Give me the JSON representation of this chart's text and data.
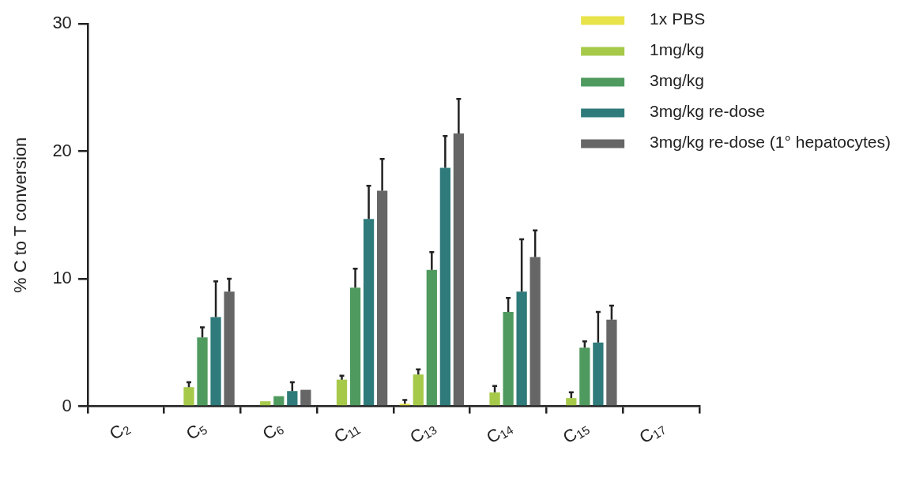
{
  "chart_data": {
    "type": "bar",
    "ylabel": "% C to T conversion",
    "categories": [
      "C$_{2}$",
      "C$_{5}$",
      "C$_{6}$",
      "C$_{11}$",
      "C$_{13}$",
      "C$_{14}$",
      "C$_{15}$",
      "C$_{17}$"
    ],
    "ylim": [
      0,
      30
    ],
    "yticks": [
      0,
      10,
      20,
      30
    ],
    "grid": false,
    "legend": "top right",
    "series": [
      {
        "name": "1x PBS",
        "color": "#e8e34a",
        "values": [
          0,
          0,
          0,
          0,
          0.2,
          0,
          0,
          0
        ],
        "errors": [
          null,
          null,
          null,
          null,
          [
            0.2,
            0.5
          ],
          null,
          null,
          null
        ]
      },
      {
        "name": "1mg/kg",
        "color": "#a6c94a",
        "values": [
          0,
          1.5,
          0.4,
          2.1,
          2.5,
          1.1,
          0.65,
          0
        ],
        "errors": [
          null,
          [
            1.5,
            1.9
          ],
          null,
          [
            2.1,
            2.4
          ],
          [
            2.5,
            2.9
          ],
          [
            1.1,
            1.6
          ],
          [
            0.65,
            1.1
          ],
          null
        ]
      },
      {
        "name": "3mg/kg",
        "color": "#4f9a5e",
        "values": [
          0,
          5.4,
          0.8,
          9.3,
          10.7,
          7.4,
          4.6,
          0
        ],
        "errors": [
          null,
          [
            5.4,
            6.2
          ],
          null,
          [
            9.3,
            10.8
          ],
          [
            10.7,
            12.1
          ],
          [
            7.4,
            8.5
          ],
          [
            4.6,
            5.1
          ],
          null
        ]
      },
      {
        "name": "3mg/kg re-dose",
        "color": "#2f7a7a",
        "values": [
          0,
          7.0,
          1.2,
          14.7,
          18.7,
          9.0,
          5.0,
          0
        ],
        "errors": [
          null,
          [
            7.0,
            9.8
          ],
          [
            1.2,
            1.9
          ],
          [
            14.7,
            17.3
          ],
          [
            18.7,
            21.2
          ],
          [
            9.0,
            13.1
          ],
          [
            5.0,
            7.4
          ],
          null
        ]
      },
      {
        "name": "3mg/kg re-dose (1° hepatocytes)",
        "color": "#666666",
        "values": [
          0,
          9.0,
          1.3,
          16.9,
          21.4,
          11.7,
          6.8,
          0
        ],
        "errors": [
          null,
          [
            9.0,
            10.0
          ],
          null,
          [
            16.9,
            19.4
          ],
          [
            21.4,
            24.1
          ],
          [
            11.7,
            13.8
          ],
          [
            6.8,
            7.9
          ],
          null
        ]
      }
    ]
  }
}
